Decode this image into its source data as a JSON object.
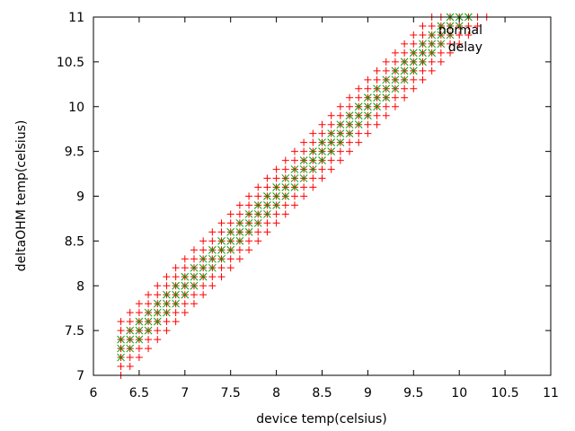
{
  "chart_data": {
    "type": "scatter",
    "title": "",
    "xlabel": "device temp(celsius)",
    "ylabel": "deltaOHM temp(celsius)",
    "xlim": [
      6,
      11
    ],
    "ylim": [
      7,
      11
    ],
    "xticks": [
      "6",
      "6.5",
      "7",
      "7.5",
      "8",
      "8.5",
      "9",
      "9.5",
      "10",
      "10.5",
      "11"
    ],
    "yticks": [
      "7",
      "7.5",
      "8",
      "8.5",
      "9",
      "9.5",
      "10",
      "10.5",
      "11"
    ],
    "grid": false,
    "legend": "top-right",
    "series": [
      {
        "name": "normal",
        "marker": "plus",
        "color": "#ff0000",
        "bands": [
          {
            "x_from": 6.3,
            "x_to": 10.8,
            "offset_from": 0.0,
            "offset_to": 0.3
          }
        ]
      },
      {
        "name": "delay",
        "marker": "cross",
        "color": "#00a000",
        "bands": [
          {
            "x_from": 6.3,
            "x_to": 10.8,
            "offset_from": 0.0,
            "offset_to": 0.1
          }
        ]
      }
    ]
  }
}
